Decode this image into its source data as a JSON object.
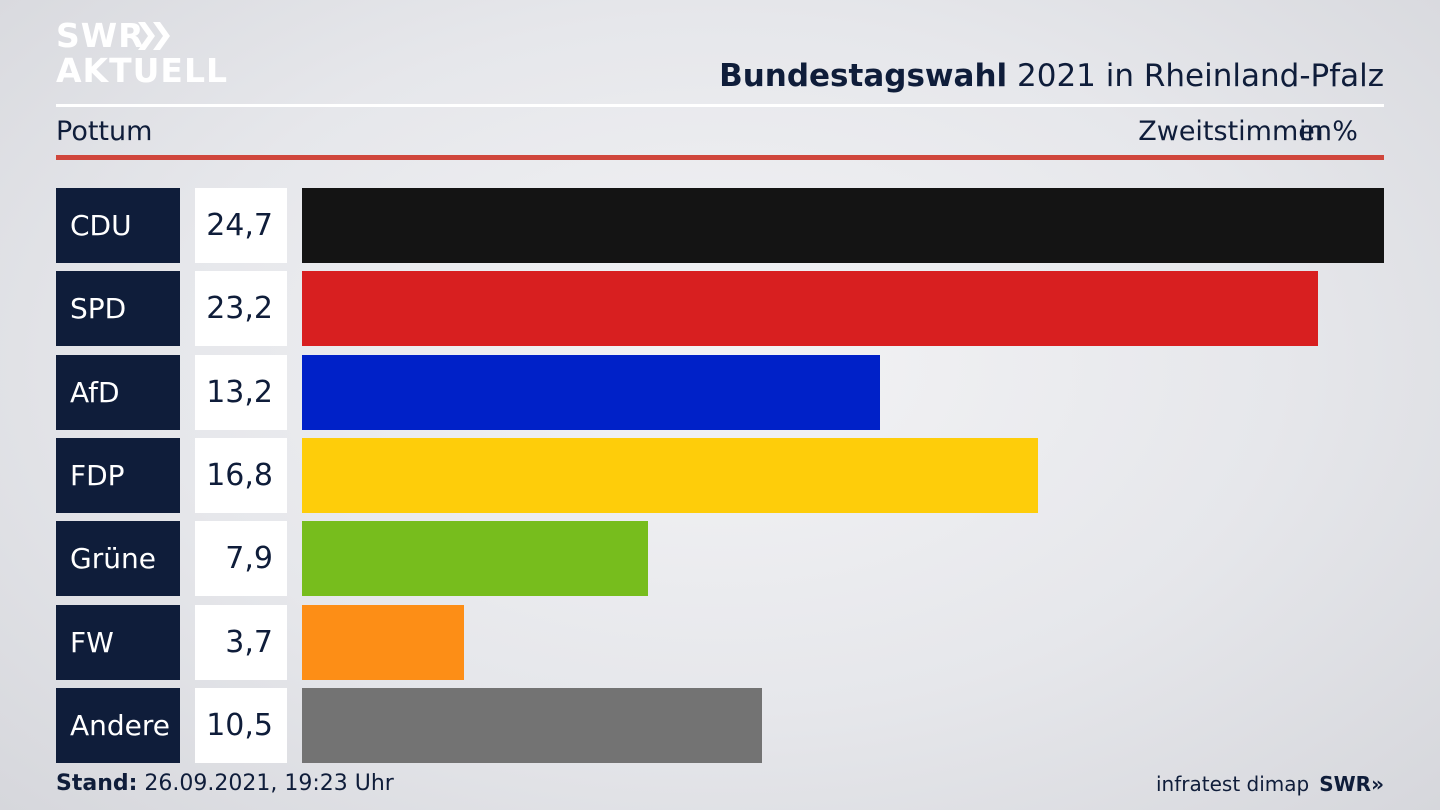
{
  "brand": {
    "line1": "SWR",
    "line2": "AKTUELL",
    "arrows": "»",
    "footer_brand": "SWR»"
  },
  "header": {
    "title_bold": "Bundestagswahl",
    "title_rest": " 2021 in Rheinland-Pfalz",
    "region": "Pottum",
    "metric": "Zweitstimmen",
    "unit": "in %"
  },
  "footer": {
    "stand_label": "Stand:",
    "stand_value": " 26.09.2021, 19:23 Uhr",
    "source": "infratest dimap"
  },
  "colors": {
    "navy": "#0f1d3a",
    "rule_red": "#d0463c"
  },
  "chart_data": {
    "type": "bar",
    "orientation": "horizontal",
    "categories": [
      "CDU",
      "SPD",
      "AfD",
      "FDP",
      "Grüne",
      "FW",
      "Andere"
    ],
    "values": [
      24.7,
      23.2,
      13.2,
      16.8,
      7.9,
      3.7,
      10.5
    ],
    "value_labels": [
      "24,7",
      "23,2",
      "13,2",
      "16,8",
      "7,9",
      "3,7",
      "10,5"
    ],
    "colors": [
      "#141414",
      "#d81f20",
      "#0021c8",
      "#fecd0a",
      "#77bd1d",
      "#fd8e16",
      "#737373"
    ],
    "xlim": [
      0,
      24.7
    ],
    "title": "Bundestagswahl 2021 in Rheinland-Pfalz",
    "xlabel": "Zweitstimmen in %",
    "ylabel": ""
  }
}
